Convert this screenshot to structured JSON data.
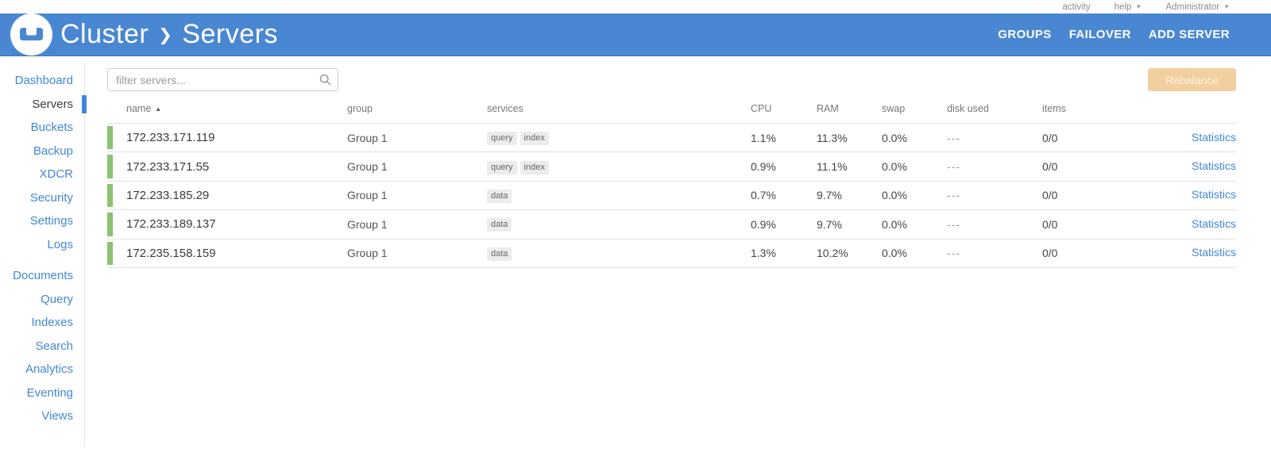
{
  "topbar": {
    "activity_label": "activity",
    "help_label": "help",
    "user_label": "Administrator"
  },
  "header": {
    "cluster_label": "Cluster",
    "section_label": "Servers",
    "separator": "❯",
    "actions": [
      "GROUPS",
      "FAILOVER",
      "ADD SERVER"
    ]
  },
  "sidebar": {
    "active": "Servers",
    "group1": [
      "Dashboard",
      "Servers",
      "Buckets",
      "Backup",
      "XDCR",
      "Security",
      "Settings",
      "Logs"
    ],
    "group2": [
      "Documents",
      "Query",
      "Indexes",
      "Search",
      "Analytics",
      "Eventing",
      "Views"
    ]
  },
  "toolbar": {
    "filter_placeholder": "filter servers...",
    "rebalance_label": "Rebalance"
  },
  "table": {
    "columns": [
      "name",
      "group",
      "services",
      "CPU",
      "RAM",
      "swap",
      "disk used",
      "items",
      ""
    ],
    "sort_column": "name",
    "sort_direction": "asc",
    "rows": [
      {
        "name": "172.233.171.119",
        "group": "Group 1",
        "services": [
          "query",
          "index"
        ],
        "cpu": "1.1%",
        "ram": "11.3%",
        "swap": "0.0%",
        "disk_used": "---",
        "items": "0/0",
        "link": "Statistics"
      },
      {
        "name": "172.233.171.55",
        "group": "Group 1",
        "services": [
          "query",
          "index"
        ],
        "cpu": "0.9%",
        "ram": "11.1%",
        "swap": "0.0%",
        "disk_used": "---",
        "items": "0/0",
        "link": "Statistics"
      },
      {
        "name": "172.233.185.29",
        "group": "Group 1",
        "services": [
          "data"
        ],
        "cpu": "0.7%",
        "ram": "9.7%",
        "swap": "0.0%",
        "disk_used": "---",
        "items": "0/0",
        "link": "Statistics"
      },
      {
        "name": "172.233.189.137",
        "group": "Group 1",
        "services": [
          "data"
        ],
        "cpu": "0.9%",
        "ram": "9.7%",
        "swap": "0.0%",
        "disk_used": "---",
        "items": "0/0",
        "link": "Statistics"
      },
      {
        "name": "172.235.158.159",
        "group": "Group 1",
        "services": [
          "data"
        ],
        "cpu": "1.3%",
        "ram": "10.2%",
        "swap": "0.0%",
        "disk_used": "---",
        "items": "0/0",
        "link": "Statistics"
      }
    ]
  },
  "colors": {
    "header_blue": "#4a87d2",
    "link_blue": "#4287d6",
    "row_green": "#8cc272",
    "rebalance_disabled": "#f2cf9f"
  }
}
